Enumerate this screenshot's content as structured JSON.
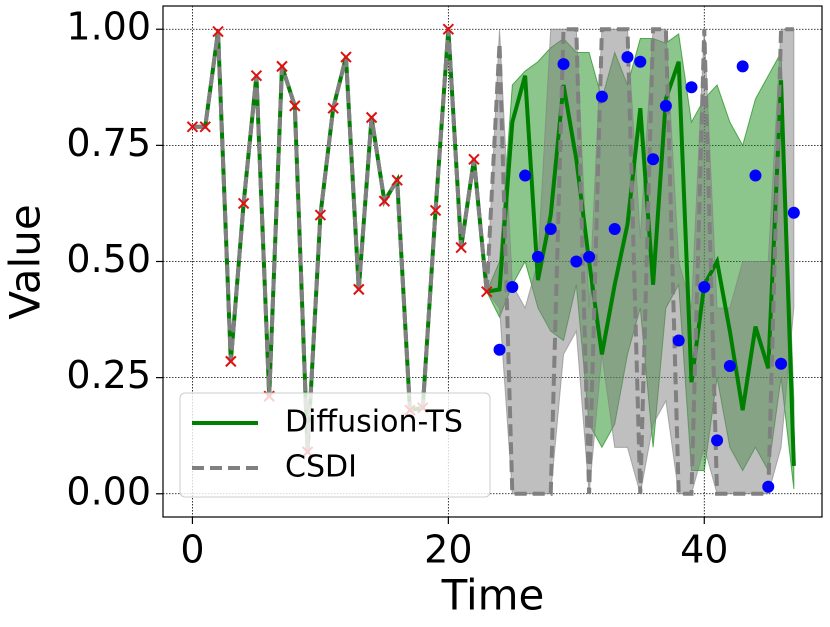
{
  "chart_data": {
    "type": "line",
    "x_label": "Time",
    "y_label": "Value",
    "xlim": [
      -2.3,
      49.2
    ],
    "ylim": [
      -0.05,
      1.05
    ],
    "xticks": [
      0,
      20,
      40
    ],
    "yticks": [
      {
        "value": 0,
        "label": "0.00"
      },
      {
        "value": 0.25,
        "label": "0.25"
      },
      {
        "value": 0.5,
        "label": "0.50"
      },
      {
        "value": 0.75,
        "label": "0.75"
      },
      {
        "value": 1,
        "label": "1.00"
      }
    ],
    "grid": true,
    "legend": "lower left",
    "observed": {
      "color": "#e01010",
      "x": [
        0,
        1,
        2,
        3,
        4,
        5,
        6,
        7,
        8,
        9,
        10,
        11,
        12,
        13,
        14,
        15,
        16,
        17,
        18,
        19,
        20,
        21,
        22,
        23
      ],
      "values": [
        0.79,
        0.79,
        0.995,
        0.285,
        0.625,
        0.9,
        0.21,
        0.92,
        0.835,
        0.09,
        0.6,
        0.83,
        0.94,
        0.44,
        0.81,
        0.63,
        0.675,
        0.18,
        0.185,
        0.61,
        1.0,
        0.53,
        0.72,
        0.435
      ]
    },
    "ground_truth": {
      "color": "#0000ff",
      "x": [
        24,
        25,
        26,
        27,
        28,
        29,
        30,
        31,
        32,
        33,
        34,
        35,
        36,
        37,
        38,
        39,
        40,
        41,
        42,
        43,
        44,
        45,
        46,
        47
      ],
      "values": [
        0.31,
        0.445,
        0.685,
        0.51,
        0.57,
        0.925,
        0.5,
        0.51,
        0.855,
        0.57,
        0.94,
        0.93,
        0.72,
        0.835,
        0.33,
        0.875,
        0.445,
        0.115,
        0.275,
        0.92,
        0.685,
        0.015,
        0.28,
        0.605
      ]
    },
    "series": [
      {
        "name": "Diffusion-TS",
        "color": "#008000",
        "dash": false,
        "x": [
          23,
          24,
          25,
          26,
          27,
          28,
          29,
          30,
          31,
          32,
          33,
          34,
          35,
          36,
          37,
          38,
          39,
          40,
          41,
          42,
          43,
          44,
          45,
          46,
          47
        ],
        "values": [
          0.435,
          0.44,
          0.8,
          0.9,
          0.46,
          0.6,
          0.88,
          0.72,
          0.5,
          0.3,
          0.45,
          0.58,
          0.83,
          0.45,
          0.85,
          0.93,
          0.24,
          0.45,
          0.5,
          0.35,
          0.18,
          0.36,
          0.27,
          0.89,
          0.06
        ],
        "lower": [
          0.435,
          0.38,
          0.45,
          0.5,
          0.4,
          0.35,
          0.33,
          0.45,
          0.15,
          0.1,
          0.15,
          0.3,
          0.4,
          0.1,
          0.4,
          0.45,
          0.05,
          0.05,
          0.25,
          0.1,
          0.05,
          0.1,
          0.05,
          0.25,
          0.01
        ],
        "upper": [
          0.435,
          0.5,
          0.88,
          0.91,
          0.93,
          0.96,
          0.98,
          0.95,
          0.95,
          0.85,
          0.95,
          0.88,
          0.98,
          0.98,
          0.97,
          0.99,
          0.8,
          0.85,
          0.88,
          0.8,
          0.75,
          0.85,
          0.9,
          0.95,
          0.2
        ]
      },
      {
        "name": "CSDI",
        "color": "#808080",
        "dash": true,
        "x": [
          23,
          24,
          25,
          26,
          27,
          28,
          29,
          30,
          31,
          32,
          33,
          34,
          35,
          36,
          37,
          38,
          39,
          40,
          41,
          42,
          43,
          44,
          45,
          46,
          47
        ],
        "values": [
          0.435,
          0.97,
          0,
          0,
          0,
          0,
          1,
          1,
          0,
          1,
          1,
          1,
          0,
          1,
          1,
          0,
          0,
          1,
          0,
          0,
          0,
          0,
          0,
          1,
          1
        ],
        "lower": [
          0.435,
          0.4,
          0,
          0,
          0,
          0,
          0.3,
          0.35,
          0,
          0.3,
          0.1,
          0.1,
          0,
          0.15,
          0.2,
          0,
          0,
          0.1,
          0,
          0,
          0,
          0,
          0,
          0.1,
          0.4
        ],
        "upper": [
          0.435,
          1,
          0.45,
          0.4,
          0.5,
          1,
          1,
          1,
          0.4,
          1,
          1,
          1,
          0.55,
          1,
          1,
          0.5,
          0.4,
          1,
          0.4,
          0.4,
          0.5,
          0.5,
          0.5,
          1,
          1
        ]
      }
    ]
  }
}
